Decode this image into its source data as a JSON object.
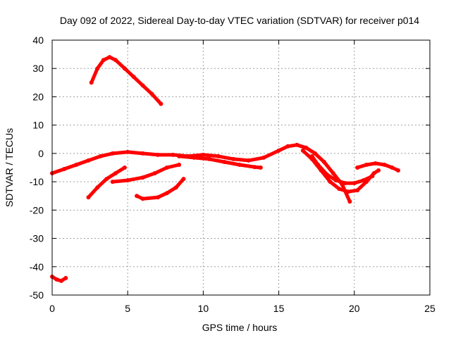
{
  "chart_data": {
    "type": "scatter",
    "title": "Day 092 of 2022, Sidereal Day-to-day VTEC variation (SDTVAR) for receiver p014",
    "xlabel": "GPS time / hours",
    "ylabel": "SDTVAR / TECUs",
    "xlim": [
      0,
      25
    ],
    "ylim": [
      -50,
      40
    ],
    "xticks": [
      0,
      5,
      10,
      15,
      20,
      25
    ],
    "yticks": [
      -50,
      -40,
      -30,
      -20,
      -10,
      0,
      10,
      20,
      30,
      40
    ],
    "grid": true,
    "legend": "none",
    "series_color": "#ff0000",
    "series": [
      {
        "name": "arc-1",
        "x": [
          2.6,
          3.0,
          3.4,
          3.8,
          4.2,
          4.8,
          5.4,
          6.0,
          6.6,
          7.2
        ],
        "y": [
          25,
          30,
          33,
          34,
          33,
          30,
          27,
          24,
          21,
          17.5
        ]
      },
      {
        "name": "arc-2",
        "x": [
          0.0,
          0.8,
          1.6,
          2.4,
          3.2,
          4.0,
          5.0,
          6.0,
          7.0,
          8.0,
          9.0,
          10.0,
          11.0,
          12.0,
          13.0,
          14.0,
          15.0,
          15.6,
          16.2,
          16.8,
          17.4,
          18.0,
          18.6,
          19.2,
          19.7
        ],
        "y": [
          -7,
          -5.5,
          -4,
          -2.5,
          -1,
          0,
          0.5,
          0,
          -0.5,
          -0.5,
          -1,
          -0.5,
          -1,
          -2,
          -2.5,
          -1.5,
          1,
          2.5,
          3,
          2,
          0,
          -3,
          -7,
          -11,
          -17
        ]
      },
      {
        "name": "arc-3",
        "x": [
          2.4,
          3.0,
          3.6,
          4.2,
          4.8
        ],
        "y": [
          -15.5,
          -12,
          -9,
          -7,
          -5
        ]
      },
      {
        "name": "arc-4",
        "x": [
          4.0,
          5.0,
          6.0,
          6.8,
          7.6,
          8.4
        ],
        "y": [
          -10,
          -9.5,
          -8.5,
          -7,
          -5,
          -4
        ]
      },
      {
        "name": "arc-5",
        "x": [
          5.6,
          6.0,
          7.0,
          7.6,
          8.2,
          8.7
        ],
        "y": [
          -15,
          -16,
          -15.5,
          -14,
          -12,
          -9
        ]
      },
      {
        "name": "arc-6",
        "x": [
          8.4,
          9.4,
          10.4,
          11.4,
          12.4,
          13.4,
          13.8
        ],
        "y": [
          -1,
          -1.5,
          -2,
          -3,
          -4,
          -4.8,
          -5
        ]
      },
      {
        "name": "arc-7",
        "x": [
          16.6,
          17.2,
          17.8,
          18.4,
          19.0,
          19.6,
          20.2,
          20.8,
          21.3,
          21.6
        ],
        "y": [
          1,
          -2,
          -6,
          -10,
          -12.5,
          -13.5,
          -13,
          -10,
          -7,
          -6
        ]
      },
      {
        "name": "arc-8",
        "x": [
          17.2,
          17.6,
          18.2,
          18.8,
          19.4,
          20.0,
          20.6,
          21.2
        ],
        "y": [
          -1,
          -4,
          -7.5,
          -9.5,
          -10.5,
          -10.5,
          -9.5,
          -8
        ]
      },
      {
        "name": "arc-9",
        "x": [
          20.2,
          20.8,
          21.4,
          22.0,
          22.5,
          22.9
        ],
        "y": [
          -5,
          -4,
          -3.5,
          -4,
          -5,
          -6
        ]
      },
      {
        "name": "arc-10",
        "x": [
          0.0,
          0.3,
          0.6,
          0.9
        ],
        "y": [
          -43.5,
          -44.5,
          -45,
          -44
        ]
      }
    ]
  }
}
